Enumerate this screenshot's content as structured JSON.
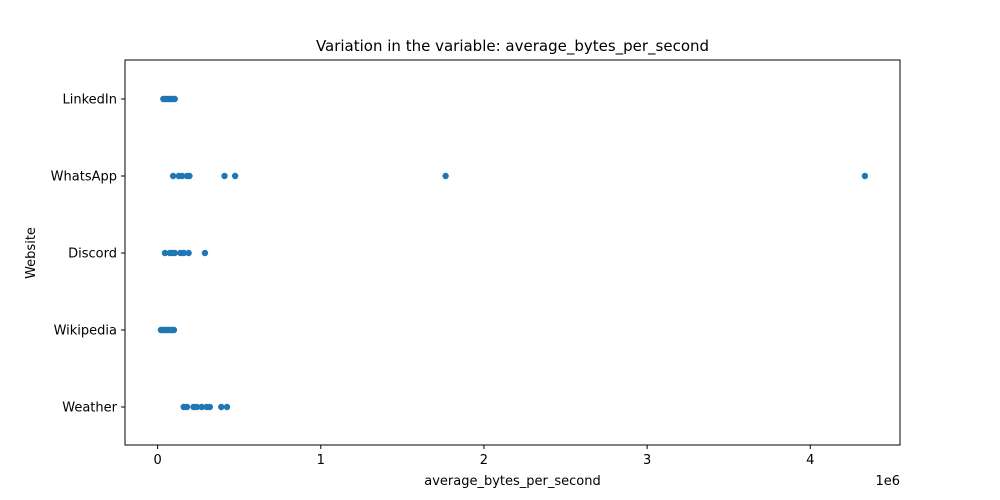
{
  "chart_data": {
    "type": "scatter",
    "title": "Variation in the variable: average_bytes_per_second",
    "xlabel": "average_bytes_per_second",
    "ylabel": "Website",
    "x_offset_text": "1e6",
    "x_ticks": [
      0,
      1,
      2,
      3,
      4
    ],
    "xlim": [
      -0.2,
      4.55
    ],
    "categories": [
      "LinkedIn",
      "WhatsApp",
      "Discord",
      "Wikipedia",
      "Weather"
    ],
    "grid": false,
    "legend": "none",
    "marker_color": "#1f77b4",
    "series": [
      {
        "values": [
          {
            "y": "LinkedIn",
            "x": [
              0.035,
              0.045,
              0.055,
              0.065,
              0.075,
              0.085,
              0.095,
              0.105
            ]
          },
          {
            "y": "WhatsApp",
            "x": [
              0.095,
              0.13,
              0.15,
              0.18,
              0.195,
              0.41,
              0.475,
              1.765,
              4.335
            ]
          },
          {
            "y": "Discord",
            "x": [
              0.045,
              0.075,
              0.09,
              0.105,
              0.14,
              0.16,
              0.19,
              0.29
            ]
          },
          {
            "y": "Wikipedia",
            "x": [
              0.02,
              0.03,
              0.04,
              0.05,
              0.06,
              0.07,
              0.08,
              0.09,
              0.1
            ]
          },
          {
            "y": "Weather",
            "x": [
              0.16,
              0.18,
              0.22,
              0.24,
              0.27,
              0.3,
              0.32,
              0.39,
              0.425
            ]
          }
        ]
      }
    ]
  }
}
